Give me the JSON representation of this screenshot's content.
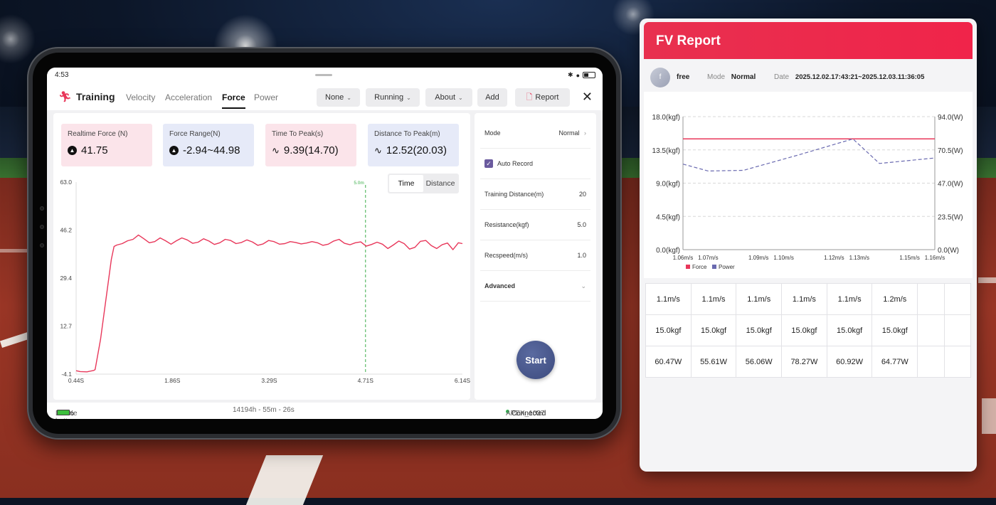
{
  "tablet": {
    "status": {
      "time": "4:53"
    },
    "app": {
      "title": "Training",
      "tabs": [
        {
          "label": "Velocity",
          "active": false
        },
        {
          "label": "Acceleration",
          "active": false
        },
        {
          "label": "Force",
          "active": true
        },
        {
          "label": "Power",
          "active": false
        }
      ],
      "toolbar": {
        "none_label": "None",
        "running_label": "Running",
        "about_label": "About",
        "add_label": "Add",
        "report_label": "Report"
      }
    },
    "stats": [
      {
        "label": "Realtime Force  (N)",
        "value": "41.75",
        "icon": "triangle-icon",
        "bg": "#fbe4ea"
      },
      {
        "label": "Force Range(N)",
        "value": "-2.94~44.98",
        "icon": "triangle-icon",
        "bg": "#e6eaf8"
      },
      {
        "label": "Time To Peak(s)",
        "value": "9.39(14.70)",
        "icon": "pulse-icon",
        "bg": "#fbe4ea"
      },
      {
        "label": "Distance To Peak(m)",
        "value": "12.52(20.03)",
        "icon": "pulse-icon",
        "bg": "#e6eaf8"
      }
    ],
    "toggle": {
      "time": "Time",
      "distance": "Distance"
    },
    "settings": {
      "mode_label": "Mode",
      "mode_value": "Normal",
      "auto_record_label": "Auto Record",
      "distance_label": "Training Distance(m)",
      "distance_value": "20",
      "resistance_label": "Resistance(kgf)",
      "resistance_value": "5.0",
      "recspeed_label": "Recspeed(m/s)",
      "recspeed_value": "1.0",
      "advanced_label": "Advanced",
      "start_label": "Start"
    },
    "footer": {
      "battery_label": "Device battery level",
      "battery_value": "97%",
      "duration": "14194h - 55m - 26s",
      "device": "APEX_1037",
      "status": "Connected"
    }
  },
  "report": {
    "title": "FV Report",
    "user": {
      "avatar": "f",
      "name": "free",
      "mode_label": "Mode",
      "mode_value": "Normal",
      "date_label": "Date",
      "date_value": "2025.12.02.17:43:21~2025.12.03.11:36:05"
    },
    "table": [
      [
        "1.1m/s",
        "1.1m/s",
        "1.1m/s",
        "1.1m/s",
        "1.1m/s",
        "1.2m/s"
      ],
      [
        "15.0kgf",
        "15.0kgf",
        "15.0kgf",
        "15.0kgf",
        "15.0kgf",
        "15.0kgf"
      ],
      [
        "60.47W",
        "55.61W",
        "56.06W",
        "78.27W",
        "60.92W",
        "64.77W"
      ]
    ]
  },
  "colors": {
    "accent": "#e8375a",
    "force": "#e8375a",
    "power": "#6a6ab0"
  },
  "chart_data": [
    {
      "type": "line",
      "x_ticks": [
        "0.44S",
        "1.86S",
        "3.29S",
        "4.71S",
        "6.14S"
      ],
      "y_ticks": [
        "63.0",
        "46.2",
        "29.4",
        "12.7",
        "-4.1"
      ],
      "ylim": [
        -4.1,
        63.0
      ],
      "xlim": [
        0.44,
        6.14
      ],
      "marker": {
        "x": 4.71,
        "label": "5.0m"
      },
      "series": [
        {
          "x": [
            0.44,
            0.5,
            0.6,
            0.7,
            0.72,
            0.8,
            0.88,
            0.96,
            1.0,
            1.04,
            1.12,
            1.2,
            1.28,
            1.36,
            1.44,
            1.52,
            1.6,
            1.68,
            1.76,
            1.84,
            1.92,
            2.0,
            2.08,
            2.16,
            2.24,
            2.32,
            2.4,
            2.48,
            2.56,
            2.64,
            2.72,
            2.8,
            2.88,
            2.96,
            3.04,
            3.12,
            3.2,
            3.28,
            3.36,
            3.44,
            3.52,
            3.6,
            3.68,
            3.76,
            3.84,
            3.92,
            4.0,
            4.08,
            4.16,
            4.24,
            4.32,
            4.4,
            4.48,
            4.56,
            4.64,
            4.72,
            4.8,
            4.88,
            4.96,
            5.04,
            5.12,
            5.2,
            5.28,
            5.36,
            5.44,
            5.52,
            5.6,
            5.68,
            5.76,
            5.84,
            5.92,
            6.0,
            6.08,
            6.14
          ],
          "y": [
            -2.9,
            -3.2,
            -3.3,
            -2.8,
            -2.5,
            8,
            22,
            36,
            40.5,
            41,
            41.5,
            42.5,
            43,
            44.5,
            43.2,
            41.8,
            42.2,
            43.5,
            42.5,
            41.3,
            42.5,
            43.5,
            42.8,
            41.6,
            42,
            43.2,
            42.4,
            41.2,
            41.8,
            43,
            42.6,
            41.5,
            41.9,
            42.8,
            42.1,
            40.9,
            41.4,
            42.6,
            42.2,
            41.3,
            41.5,
            42.2,
            41.9,
            41.4,
            41.7,
            42.2,
            41.8,
            40.9,
            41.3,
            42.4,
            43,
            41.6,
            41.1,
            41.8,
            42.1,
            40.6,
            41.2,
            42,
            41.3,
            39.8,
            41,
            42.4,
            41.5,
            39.6,
            40.2,
            42.3,
            42.6,
            40.8,
            39.8,
            41.1,
            41.7,
            39.4,
            41.8,
            41.5
          ]
        }
      ]
    },
    {
      "type": "line",
      "categories": [
        "1.06m/s",
        "1.07m/s",
        "1.09m/s",
        "1.10m/s",
        "1.12m/s",
        "1.13m/s",
        "1.15m/s",
        "1.16m/s"
      ],
      "y_left_ticks": [
        "18.0(kgf)",
        "13.5(kgf)",
        "9.0(kgf)",
        "4.5(kgf)",
        "0.0(kgf)"
      ],
      "y_right_ticks": [
        "94.0(W)",
        "70.5(W)",
        "47.0(W)",
        "23.5(W)",
        "0.0(W)"
      ],
      "ylim_left": [
        0,
        18
      ],
      "ylim_right": [
        0,
        94
      ],
      "legend": "bottom-left",
      "series": [
        {
          "name": "Force",
          "x": [
            1.06,
            1.16
          ],
          "values": [
            15.0,
            15.0
          ]
        },
        {
          "name": "Power",
          "x": [
            1.06,
            1.07,
            1.084,
            1.106,
            1.1275,
            1.138,
            1.16
          ],
          "values": [
            60.47,
            55.61,
            56.06,
            67.0,
            78.27,
            60.92,
            64.77
          ]
        }
      ]
    }
  ]
}
